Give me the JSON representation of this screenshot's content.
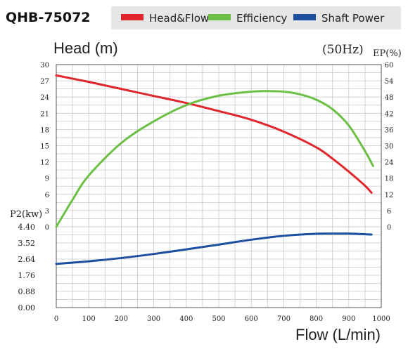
{
  "chart_data": {
    "type": "line",
    "model": "QHB-75072",
    "frequency": "(50Hz)",
    "legend": [
      {
        "name": "Head&Flow",
        "color": "#e0262c"
      },
      {
        "name": "Efficiency",
        "color": "#6cbf45"
      },
      {
        "name": "Shaft Power",
        "color": "#1c4fa0"
      }
    ],
    "xlabel": "Flow (L/min)",
    "ylabel_head": "Head (m)",
    "ylabel_ep": "EP(%)",
    "ylabel_p2": "P2(kw)",
    "x_ticks": [
      "0",
      "100",
      "200",
      "300",
      "400",
      "500",
      "600",
      "700",
      "800",
      "900",
      "1000"
    ],
    "head_ticks": [
      "30",
      "27",
      "24",
      "21",
      "18",
      "15",
      "12",
      "9",
      "6",
      "3",
      "0"
    ],
    "ep_ticks": [
      "60",
      "54",
      "48",
      "42",
      "36",
      "30",
      "24",
      "18",
      "12",
      "6",
      "0"
    ],
    "p2_ticks": [
      "4.40",
      "3.52",
      "2.64",
      "1.76",
      "0.88",
      "0.00"
    ],
    "xlim": [
      0,
      1000
    ],
    "head_lim": [
      0,
      30
    ],
    "ep_lim": [
      0,
      60
    ],
    "p2_lim": [
      0,
      4.4
    ],
    "grid": true,
    "series": [
      {
        "name": "Head&Flow",
        "axis": "head",
        "color": "#e0262c",
        "x": [
          0,
          100,
          200,
          300,
          400,
          500,
          600,
          700,
          800,
          850,
          900,
          950,
          970
        ],
        "y": [
          28.0,
          26.8,
          25.5,
          24.2,
          22.9,
          21.4,
          19.8,
          17.6,
          14.7,
          12.6,
          10.2,
          7.6,
          6.3
        ]
      },
      {
        "name": "Efficiency",
        "axis": "ep",
        "color": "#6cbf45",
        "x": [
          0,
          50,
          100,
          200,
          300,
          400,
          500,
          600,
          650,
          700,
          750,
          800,
          850,
          900,
          950,
          975
        ],
        "y": [
          0,
          10,
          19,
          31,
          39,
          45,
          48.5,
          50,
          50.2,
          50,
          49,
          47,
          43.5,
          37.5,
          28,
          22.5
        ]
      },
      {
        "name": "Shaft Power",
        "axis": "p2",
        "color": "#1c4fa0",
        "x": [
          0,
          100,
          200,
          300,
          400,
          500,
          600,
          700,
          800,
          850,
          900,
          970
        ],
        "y": [
          2.38,
          2.52,
          2.7,
          2.92,
          3.17,
          3.43,
          3.7,
          3.91,
          4.02,
          4.03,
          4.03,
          3.98
        ]
      }
    ]
  }
}
